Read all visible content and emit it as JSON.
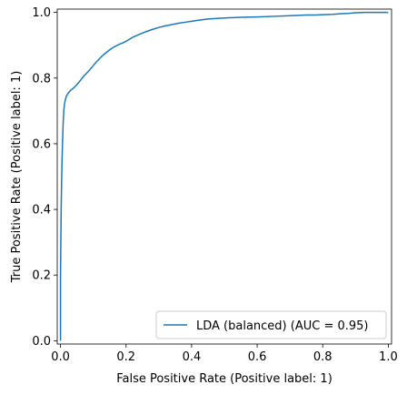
{
  "chart_data": {
    "type": "line",
    "title": "",
    "xlabel": "False Positive Rate (Positive label: 1)",
    "ylabel": "True Positive Rate (Positive label: 1)",
    "xlim": [
      -0.01,
      1.01
    ],
    "ylim": [
      -0.01,
      1.01
    ],
    "grid": false,
    "legend_position": "bottom-right",
    "x_ticks": [
      0.0,
      0.2,
      0.4,
      0.6,
      0.8,
      1.0
    ],
    "y_ticks": [
      0.0,
      0.2,
      0.4,
      0.6,
      0.8,
      1.0
    ],
    "x_tick_labels": [
      "0.0",
      "0.2",
      "0.4",
      "0.6",
      "0.8",
      "1.0"
    ],
    "y_tick_labels": [
      "0.0",
      "0.2",
      "0.4",
      "0.6",
      "0.8",
      "1.0"
    ],
    "series": [
      {
        "name": "LDA (balanced) (AUC = 0.95)",
        "color": "#1f77b4",
        "x": [
          0.0,
          0.0,
          0.002,
          0.004,
          0.006,
          0.008,
          0.01,
          0.012,
          0.015,
          0.018,
          0.022,
          0.026,
          0.03,
          0.035,
          0.04,
          0.045,
          0.05,
          0.06,
          0.07,
          0.08,
          0.09,
          0.1,
          0.11,
          0.12,
          0.13,
          0.14,
          0.15,
          0.16,
          0.17,
          0.18,
          0.19,
          0.2,
          0.22,
          0.24,
          0.26,
          0.28,
          0.3,
          0.32,
          0.34,
          0.36,
          0.38,
          0.4,
          0.42,
          0.45,
          0.5,
          0.55,
          0.6,
          0.65,
          0.7,
          0.75,
          0.78,
          0.8,
          0.83,
          0.86,
          0.88,
          0.9,
          0.93,
          0.96,
          1.0
        ],
        "y": [
          0.0,
          0.2,
          0.4,
          0.52,
          0.6,
          0.66,
          0.7,
          0.72,
          0.735,
          0.745,
          0.752,
          0.757,
          0.762,
          0.766,
          0.77,
          0.775,
          0.78,
          0.792,
          0.805,
          0.815,
          0.826,
          0.838,
          0.85,
          0.86,
          0.87,
          0.878,
          0.886,
          0.893,
          0.898,
          0.903,
          0.907,
          0.912,
          0.924,
          0.933,
          0.941,
          0.948,
          0.954,
          0.959,
          0.963,
          0.967,
          0.97,
          0.973,
          0.976,
          0.98,
          0.983,
          0.985,
          0.986,
          0.988,
          0.99,
          0.992,
          0.992,
          0.993,
          0.994,
          0.996,
          0.997,
          0.999,
          1.0,
          1.0,
          1.0
        ]
      }
    ]
  }
}
